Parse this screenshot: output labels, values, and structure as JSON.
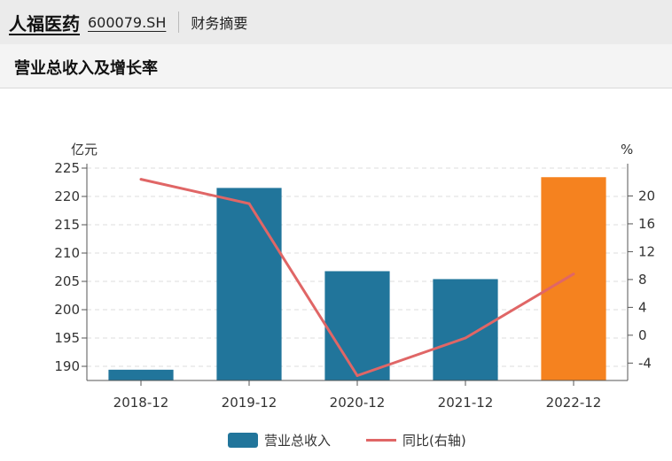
{
  "header": {
    "company": "人福医药",
    "code": "600079.SH",
    "tab": "财务摘要"
  },
  "chart_data": {
    "type": "bar",
    "title": "营业总收入及增长率",
    "categories": [
      "2018-12",
      "2019-12",
      "2020-12",
      "2021-12",
      "2022-12"
    ],
    "series": [
      {
        "name": "营业总收入",
        "type": "bar",
        "axis": "left",
        "values": [
          189.4,
          221.5,
          206.8,
          205.4,
          223.4
        ],
        "color": "#21759b",
        "highlight_last_color": "#f5821f"
      },
      {
        "name": "同比(右轴)",
        "type": "line",
        "axis": "right",
        "values": [
          22.4,
          18.9,
          -5.8,
          -0.4,
          8.8
        ],
        "color": "#e06666"
      }
    ],
    "y_left": {
      "unit": "亿元",
      "ticks": [
        190,
        195,
        200,
        205,
        210,
        215,
        220,
        225
      ],
      "range": [
        187.5,
        225
      ]
    },
    "y_right": {
      "unit": "%",
      "ticks": [
        -4,
        0,
        4,
        8,
        12,
        16,
        20
      ],
      "range": [
        -6.5,
        24
      ]
    },
    "grid": true,
    "legend_position": "bottom"
  }
}
